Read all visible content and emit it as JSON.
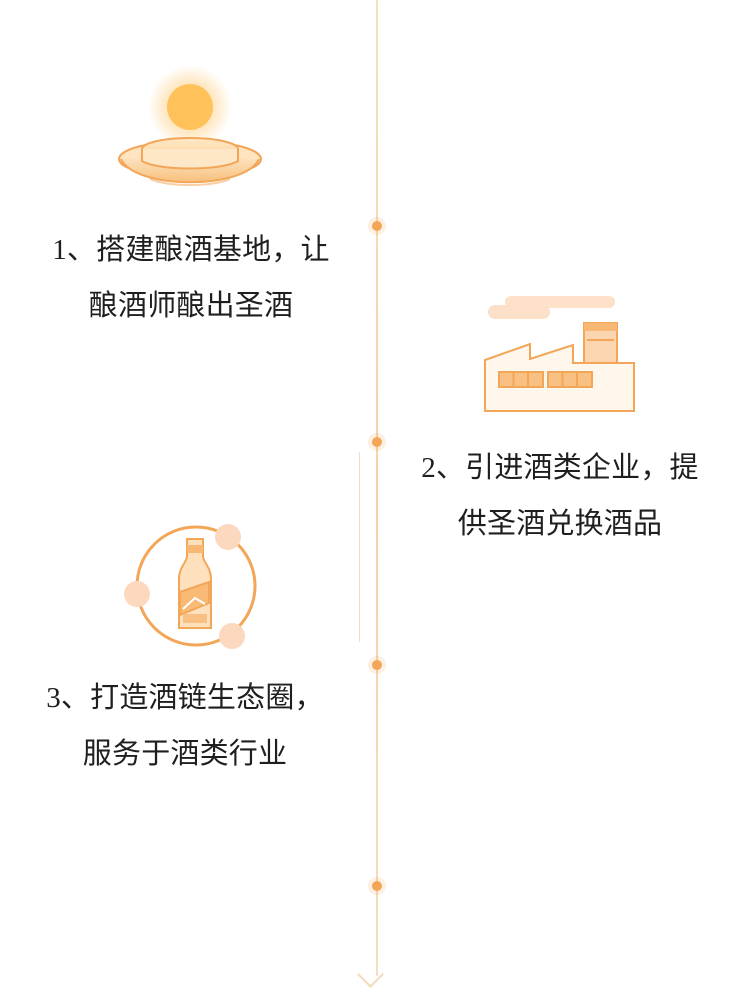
{
  "steps": [
    {
      "number": "1",
      "line1": "1、搭建酿酒基地，让",
      "line2": "酿酒师酿出圣酒"
    },
    {
      "number": "2",
      "line1": "2、引进酒类企业，提",
      "line2": "供圣酒兑换酒品"
    },
    {
      "number": "3",
      "line1": "3、打造酒链生态圈，",
      "line2": "服务于酒类行业"
    }
  ],
  "icons": {
    "step1": "sun-platform-icon",
    "step2": "factory-icon",
    "step3": "liquor-bottle-ecosystem-icon"
  },
  "colors": {
    "accent": "#f3a658",
    "accent_light": "#fbd8b3",
    "line": "#f4d2a7",
    "text": "#1f1f1f"
  }
}
